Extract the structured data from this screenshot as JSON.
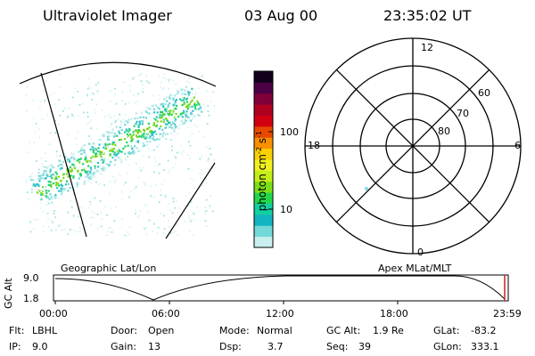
{
  "header": {
    "title": "Ultraviolet Imager",
    "date": "03 Aug 00",
    "time": "23:35:02 UT"
  },
  "left_panel": {
    "caption": "Geographic Lat/Lon"
  },
  "right_panel": {
    "caption": "Apex MLat/MLT",
    "mlt_labels": {
      "top": "12",
      "right": "6",
      "bottom": "0",
      "left": "18"
    },
    "mlat_labels": [
      "60",
      "70",
      "80"
    ]
  },
  "colorbar": {
    "label": "photon cm",
    "label_sup1": "-2",
    "label_mid": "s",
    "label_sup2": "-1",
    "tick_labels": [
      "100",
      "10"
    ],
    "colors": [
      "#c9f0ee",
      "#73d8d8",
      "#11b4c0",
      "#13d0a0",
      "#22d84a",
      "#7de016",
      "#c4ee1a",
      "#f0f020",
      "#f8d000",
      "#f89000",
      "#e84800",
      "#d00010",
      "#b00020",
      "#80003a",
      "#4a0044",
      "#12001c"
    ]
  },
  "timeline": {
    "ylabel": "GC Alt",
    "ytick_top": "9.0",
    "ytick_bottom": "1.8",
    "xticks": [
      "00:00",
      "06:00",
      "12:00",
      "18:00",
      "23:59"
    ]
  },
  "status": {
    "filter_label": "Flt:",
    "filter_value": "LBHL",
    "ip_label": "IP:",
    "ip_value": "9.0",
    "door_label": "Door:",
    "door_value": "Open",
    "gain_label": "Gain:",
    "gain_value": "13",
    "mode_label": "Mode:",
    "mode_value": "Normal",
    "dsp_label": "Dsp:",
    "dsp_value": "3.7",
    "gcalt_label": "GC Alt:",
    "gcalt_value": "1.9 Re",
    "seq_label": "Seq:",
    "seq_value": "39",
    "glat_label": "GLat:",
    "glat_value": "-83.2",
    "glon_label": "GLon:",
    "glon_value": "333.1"
  }
}
